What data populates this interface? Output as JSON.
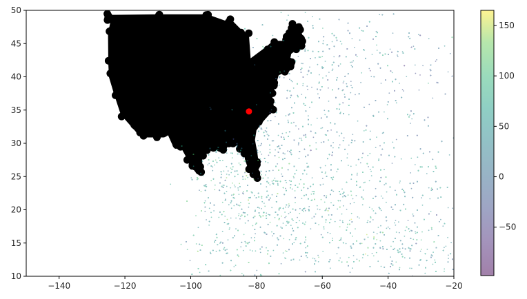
{
  "chart_data": {
    "type": "scatter",
    "title": "",
    "xlabel": "",
    "ylabel": "",
    "xlim": [
      -150,
      -20
    ],
    "ylim": [
      10,
      50
    ],
    "x_ticks": [
      -140,
      -120,
      -100,
      -80,
      -60,
      -40,
      -20
    ],
    "y_ticks": [
      10,
      15,
      20,
      25,
      30,
      35,
      40,
      45,
      50
    ],
    "x_tick_labels": [
      "−140",
      "−120",
      "−100",
      "−80",
      "−60",
      "−40",
      "−20"
    ],
    "y_tick_labels": [
      "10",
      "15",
      "20",
      "25",
      "30",
      "35",
      "40",
      "45",
      "50"
    ],
    "grid": false,
    "legend": "none",
    "colorbar": {
      "colormap": "viridis",
      "alpha": 0.5,
      "range": [
        -98,
        165
      ],
      "ticks": [
        -50,
        0,
        50,
        100,
        150
      ],
      "tick_labels": [
        "−50",
        "0",
        "50",
        "100",
        "150"
      ]
    },
    "layers": [
      {
        "kind": "land-points",
        "color": "#000000",
        "description_region": "continental land mass, roughly lon -125 to -67, lat 25 to 49",
        "outline": [
          [
            -124.7,
            48.9
          ],
          [
            -123.5,
            48.4
          ],
          [
            -124.3,
            46.5
          ],
          [
            -124.2,
            42.0
          ],
          [
            -124.0,
            40.0
          ],
          [
            -122.5,
            37.5
          ],
          [
            -120.5,
            34.5
          ],
          [
            -117.3,
            32.7
          ],
          [
            -114.8,
            31.3
          ],
          [
            -110.8,
            31.3
          ],
          [
            -108.2,
            31.3
          ],
          [
            -106.5,
            31.8
          ],
          [
            -104.5,
            29.6
          ],
          [
            -102.5,
            29.8
          ],
          [
            -100.5,
            28.0
          ],
          [
            -99.0,
            26.4
          ],
          [
            -97.2,
            25.9
          ],
          [
            -97.4,
            27.8
          ],
          [
            -96.8,
            28.6
          ],
          [
            -95.0,
            29.4
          ],
          [
            -93.5,
            29.8
          ],
          [
            -91.5,
            29.5
          ],
          [
            -90.0,
            29.1
          ],
          [
            -89.2,
            30.3
          ],
          [
            -88.0,
            30.5
          ],
          [
            -86.5,
            30.4
          ],
          [
            -85.0,
            29.7
          ],
          [
            -84.0,
            30.0
          ],
          [
            -83.0,
            29.0
          ],
          [
            -82.7,
            27.7
          ],
          [
            -81.5,
            25.9
          ],
          [
            -80.4,
            25.3
          ],
          [
            -80.1,
            26.7
          ],
          [
            -80.6,
            28.6
          ],
          [
            -81.3,
            30.5
          ],
          [
            -80.8,
            32.1
          ],
          [
            -79.2,
            33.2
          ],
          [
            -78.0,
            33.9
          ],
          [
            -76.5,
            34.7
          ],
          [
            -75.5,
            35.3
          ],
          [
            -76.0,
            36.9
          ],
          [
            -75.8,
            37.9
          ],
          [
            -74.9,
            38.9
          ],
          [
            -74.0,
            40.5
          ],
          [
            -72.0,
            41.0
          ],
          [
            -70.6,
            41.6
          ],
          [
            -70.0,
            41.9
          ],
          [
            -70.6,
            42.7
          ],
          [
            -70.2,
            43.7
          ],
          [
            -68.5,
            44.3
          ],
          [
            -67.0,
            44.8
          ],
          [
            -66.2,
            45.2
          ],
          [
            -67.5,
            47.1
          ],
          [
            -69.2,
            47.4
          ],
          [
            -70.5,
            46.0
          ],
          [
            -71.5,
            45.0
          ],
          [
            -74.7,
            45.0
          ],
          [
            -76.5,
            44.2
          ],
          [
            -79.0,
            43.3
          ],
          [
            -82.5,
            42.0
          ],
          [
            -83.1,
            46.0
          ],
          [
            -84.6,
            46.5
          ],
          [
            -88.0,
            48.2
          ],
          [
            -89.5,
            48.0
          ],
          [
            -95.2,
            49.0
          ],
          [
            -110.0,
            49.0
          ],
          [
            -124.7,
            48.9
          ]
        ]
      },
      {
        "kind": "track-points",
        "colormap": "viridis",
        "alpha": 0.5,
        "description_region": "dense cloud of small points spanning lon -110 to -20, lat 10 to 50, densest near lon -95 to -50, lat 13 to 35"
      },
      {
        "kind": "highlight-point",
        "color": "#ff0000",
        "x": -82.3,
        "y": 34.8
      }
    ]
  }
}
